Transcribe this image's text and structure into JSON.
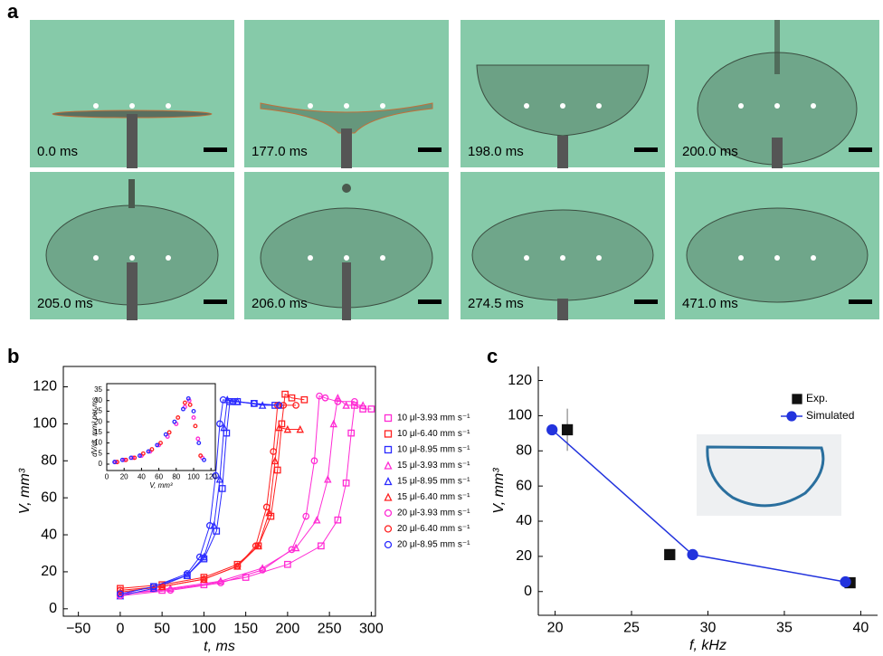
{
  "figure": {
    "panel_labels": [
      "a",
      "b",
      "c"
    ],
    "frames": [
      "0.0 ms",
      "177.0 ms",
      "198.0 ms",
      "200.0 ms",
      "205.0 ms",
      "206.0 ms",
      "274.5 ms",
      "471.0 ms"
    ]
  },
  "chart_data": [
    {
      "type": "scatter",
      "xlabel": "t, ms",
      "ylabel": "V, mm³",
      "xlim": [
        -68,
        305
      ],
      "ylim": [
        -4,
        131
      ],
      "xticks": [
        {
          "value": -50,
          "label": "−50"
        },
        0,
        50,
        100,
        150,
        200,
        250,
        300
      ],
      "yticks": [
        0,
        20,
        40,
        60,
        80,
        100,
        120
      ],
      "legend": "right",
      "series": [
        {
          "name": "10 μl-3.93 mm s⁻¹",
          "color": "#ff2ad4",
          "marker": "square",
          "line": true,
          "x": [
            0,
            50,
            100,
            150,
            200,
            240,
            260,
            270,
            276,
            280,
            290,
            300
          ],
          "values": [
            8,
            10,
            13,
            17,
            24,
            34,
            48,
            68,
            95,
            110,
            108,
            108
          ]
        },
        {
          "name": "10 μl-6.40 mm s⁻¹",
          "color": "#ff2020",
          "marker": "square",
          "line": true,
          "x": [
            0,
            50,
            100,
            140,
            165,
            180,
            188,
            193,
            197,
            205,
            220
          ],
          "values": [
            11,
            13,
            17,
            24,
            34,
            50,
            75,
            100,
            116,
            114,
            113
          ]
        },
        {
          "name": "10 μl-8.95 mm s⁻¹",
          "color": "#2a2aff",
          "marker": "square",
          "line": true,
          "x": [
            0,
            40,
            80,
            100,
            115,
            122,
            127,
            131,
            140,
            160,
            185
          ],
          "values": [
            8,
            12,
            18,
            27,
            42,
            65,
            95,
            112,
            112,
            111,
            110
          ]
        },
        {
          "name": "15 μl-3.93 mm s⁻¹",
          "color": "#ff2ad4",
          "marker": "triangle",
          "line": true,
          "x": [
            0,
            60,
            120,
            170,
            210,
            235,
            248,
            255,
            260,
            270,
            290
          ],
          "values": [
            8,
            11,
            15,
            22,
            33,
            48,
            70,
            100,
            114,
            110,
            110
          ]
        },
        {
          "name": "15 μl-8.95 mm s⁻¹",
          "color": "#2a2aff",
          "marker": "triangle",
          "line": true,
          "x": [
            0,
            40,
            80,
            100,
            112,
            119,
            124,
            128,
            140,
            170,
            190
          ],
          "values": [
            7,
            11,
            18,
            28,
            45,
            70,
            98,
            113,
            112,
            110,
            110
          ]
        },
        {
          "name": "15 μl-6.40 mm s⁻¹",
          "color": "#ff2020",
          "marker": "triangle",
          "line": true,
          "x": [
            0,
            50,
            100,
            140,
            165,
            178,
            185,
            190,
            200,
            215
          ],
          "values": [
            9,
            12,
            16,
            23,
            34,
            52,
            80,
            98,
            97,
            97
          ]
        },
        {
          "name": "20 μl-3.93 mm s⁻¹",
          "color": "#ff2ad4",
          "marker": "circle",
          "line": true,
          "x": [
            0,
            60,
            120,
            170,
            205,
            222,
            232,
            238,
            245,
            260,
            280
          ],
          "values": [
            7,
            10,
            14,
            21,
            32,
            50,
            80,
            115,
            114,
            112,
            112
          ]
        },
        {
          "name": "20 μl-6.40 mm s⁻¹",
          "color": "#ff2020",
          "marker": "circle",
          "line": true,
          "x": [
            0,
            50,
            100,
            140,
            162,
            175,
            183,
            188,
            195,
            210
          ],
          "values": [
            10,
            12,
            16,
            23,
            34,
            55,
            85,
            110,
            110,
            110
          ]
        },
        {
          "name": "20 μl-8.95 mm s⁻¹",
          "color": "#2a2aff",
          "marker": "circle",
          "line": true,
          "x": [
            0,
            40,
            80,
            95,
            107,
            114,
            119,
            123,
            135,
            160,
            190
          ],
          "values": [
            8,
            12,
            19,
            28,
            45,
            72,
            100,
            113,
            112,
            111,
            110
          ]
        }
      ]
    },
    {
      "type": "scatter",
      "xlabel": "V, mm³",
      "ylabel": "dV/dt, mm³ per ms",
      "xlim": [
        0,
        125
      ],
      "ylim": [
        -3,
        38
      ],
      "xticks": [
        0,
        20,
        40,
        60,
        80,
        100,
        120
      ],
      "yticks": [
        0,
        5,
        10,
        15,
        20,
        25,
        30,
        35
      ],
      "series": [
        {
          "color": "#ff2ad4",
          "marker": "circle",
          "line": false,
          "x": [
            10,
            20,
            30,
            40,
            50,
            60,
            70,
            80,
            90,
            95,
            100,
            105,
            110
          ],
          "values": [
            1,
            2,
            3,
            4,
            6,
            9,
            13,
            19,
            27,
            30,
            22,
            12,
            3
          ]
        },
        {
          "color": "#ff2020",
          "marker": "circle",
          "line": false,
          "x": [
            12,
            22,
            32,
            42,
            52,
            62,
            72,
            82,
            90,
            96,
            102,
            108
          ],
          "values": [
            1,
            2,
            3,
            5,
            7,
            10,
            15,
            22,
            29,
            28,
            18,
            4
          ]
        },
        {
          "color": "#2a2aff",
          "marker": "circle",
          "line": false,
          "x": [
            9,
            18,
            28,
            38,
            48,
            58,
            68,
            78,
            88,
            94,
            100,
            106,
            112
          ],
          "values": [
            1,
            2,
            3,
            4,
            6,
            9,
            14,
            20,
            26,
            31,
            25,
            10,
            2
          ]
        }
      ]
    },
    {
      "type": "scatter",
      "xlabel": "f, kHz",
      "ylabel": "V, mm³",
      "xlim": [
        18.9,
        41.1
      ],
      "ylim": [
        -13.5,
        128
      ],
      "xticks": [
        20,
        25,
        30,
        35,
        40
      ],
      "yticks": [
        0,
        20,
        40,
        60,
        80,
        100,
        120
      ],
      "legend": "upper right",
      "series": [
        {
          "name": "Exp.",
          "color": "#111111",
          "marker": "square",
          "line": false,
          "x": [
            20.8,
            27.5,
            39.3
          ],
          "values": [
            92,
            21,
            5
          ],
          "errors": [
            12,
            null,
            null
          ]
        },
        {
          "name": "Simulated",
          "color": "#2233dd",
          "marker": "circle",
          "line": true,
          "x": [
            19.8,
            29,
            39
          ],
          "values": [
            92,
            21,
            5.5
          ]
        }
      ]
    }
  ]
}
